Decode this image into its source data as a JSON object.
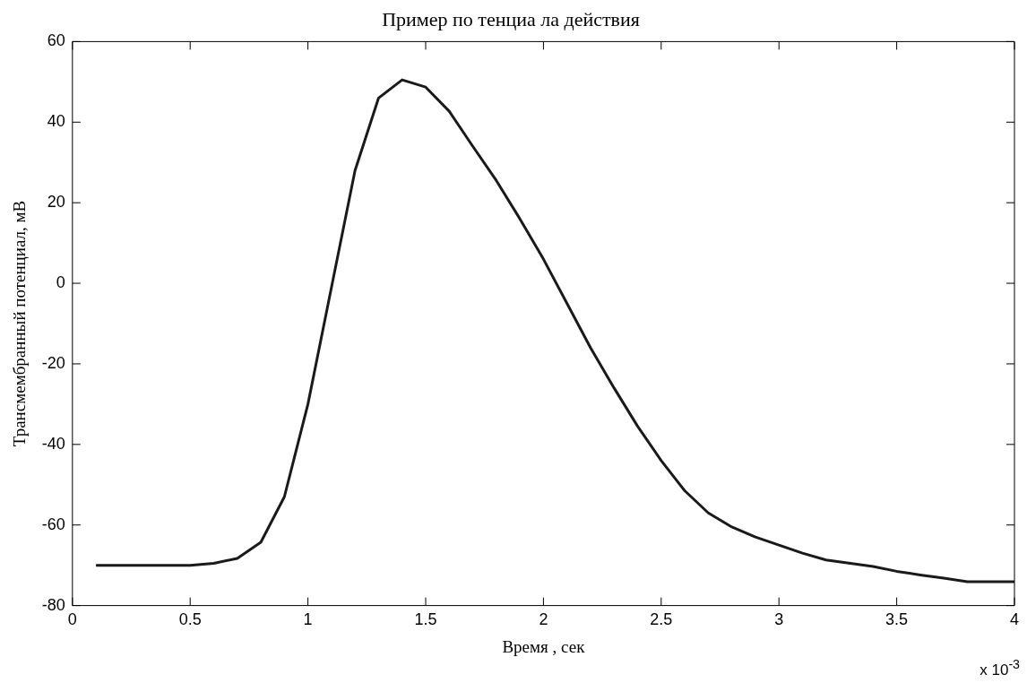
{
  "chart_data": {
    "type": "line",
    "title": "Пример по тенциа ла действия",
    "xlabel": "Время , сек",
    "ylabel": "Трансмембранный потенциал, мВ",
    "annotations": [
      "x 10$^{-3}$"
    ],
    "xlim": [
      0,
      4
    ],
    "xticks": [
      0,
      0.5,
      1,
      1.5,
      2,
      2.5,
      3,
      3.5,
      4
    ],
    "ylim": [
      -80,
      60
    ],
    "yticks": [
      -80,
      -60,
      -40,
      -20,
      0,
      20,
      40,
      60
    ],
    "grid": false,
    "legend": false,
    "marker": "none",
    "line_style": "solid",
    "series": [
      {
        "color": "#1a1a1a",
        "x": [
          0.1,
          0.5,
          0.6,
          0.7,
          0.8,
          0.9,
          1.0,
          1.1,
          1.2,
          1.3,
          1.4,
          1.5,
          1.6,
          1.7,
          1.8,
          1.9,
          2.0,
          2.1,
          2.2,
          2.3,
          2.4,
          2.5,
          2.6,
          2.7,
          2.8,
          2.9,
          3.0,
          3.1,
          3.2,
          3.4,
          3.5,
          3.6,
          3.7,
          3.8,
          4.0
        ],
        "values": [
          -70,
          -70,
          -69.5,
          -68.3,
          -64.3,
          -53,
          -30,
          -1,
          28,
          46,
          50.5,
          48.7,
          42.7,
          34,
          25.5,
          16,
          6,
          -5,
          -16,
          -26,
          -35.5,
          -44,
          -51.5,
          -57,
          -60.5,
          -63,
          -65,
          -67,
          -68.7,
          -70.3,
          -71.5,
          -72.4,
          -73.2,
          -74.1,
          -74.1
        ]
      }
    ]
  }
}
